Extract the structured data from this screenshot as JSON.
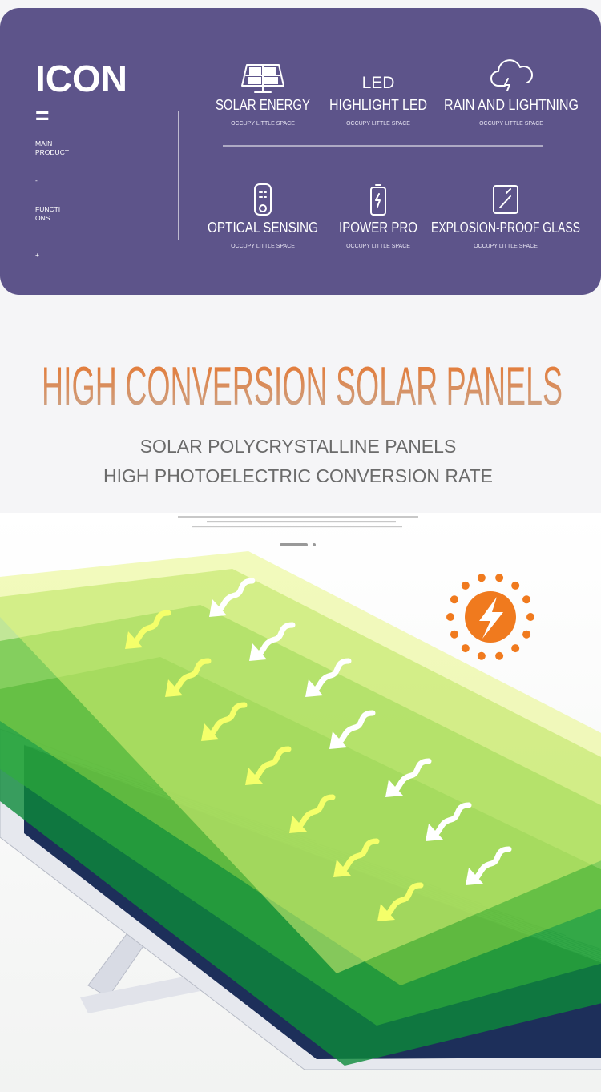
{
  "icon_panel": {
    "title": "ICON",
    "mark": "=",
    "side_labels": [
      [
        "MAIN",
        "PRODUCT"
      ],
      [
        "-"
      ],
      [
        "FUNCTI",
        "ONS"
      ],
      [
        "+"
      ]
    ],
    "features": [
      {
        "name": "SOLAR ENERGY",
        "note": "OCCUPY LITTLE SPACE"
      },
      {
        "name": "HIGHLIGHT LED",
        "note": "OCCUPY LITTLE SPACE",
        "icon_text": "LED"
      },
      {
        "name": "RAIN AND LIGHTNING",
        "note": "OCCUPY LITTLE SPACE"
      },
      {
        "name": "OPTICAL SENSING",
        "note": "OCCUPY LITTLE SPACE"
      },
      {
        "name": "IPOWER PRO",
        "note": "OCCUPY LITTLE SPACE"
      },
      {
        "name": "EXPLOSION-PROOF GLASS",
        "note": "OCCUPY LITTLE SPACE"
      }
    ]
  },
  "headline": {
    "title": "HIGH CONVERSION SOLAR PANELS",
    "subtitle_lines": [
      "SOLAR POLYCRYSTALLINE PANELS",
      "HIGH PHOTOELECTRIC CONVERSION RATE"
    ]
  }
}
